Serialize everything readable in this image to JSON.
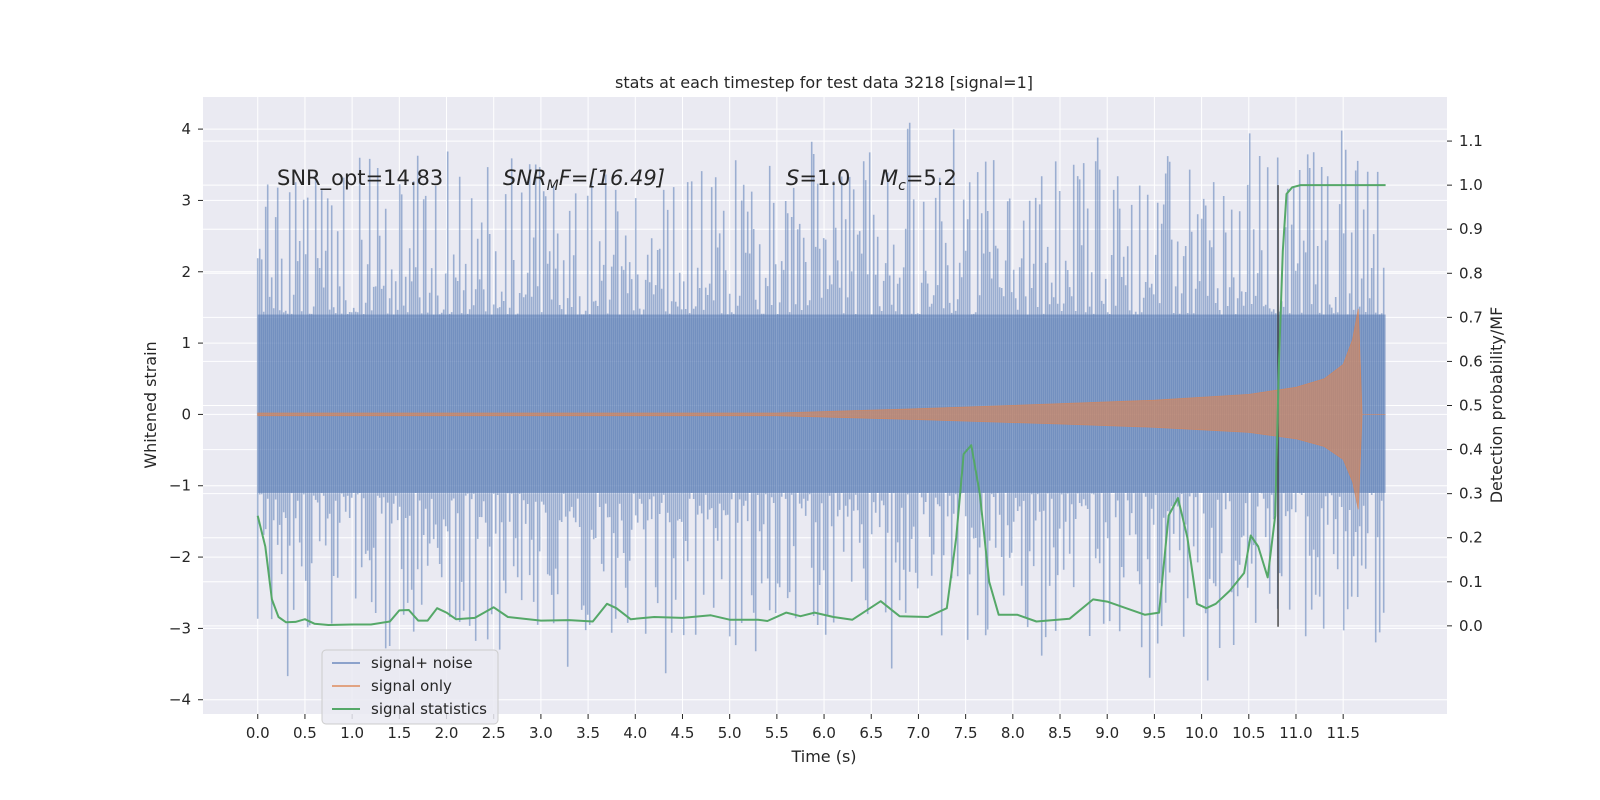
{
  "chart_data": {
    "type": "line",
    "title": "stats at each timestep for test data 3218 [signal=1]",
    "xlabel": "Time (s)",
    "ylabel": "Whitened strain",
    "ylabel_right": "Detection probability/MF",
    "xlim": [
      -0.58,
      12.6
    ],
    "ylim": [
      -4.2,
      4.45
    ],
    "ylim_right": [
      -0.2,
      1.2
    ],
    "x_ticks": [
      0.0,
      0.5,
      1.0,
      1.5,
      2.0,
      2.5,
      3.0,
      3.5,
      4.0,
      4.5,
      5.0,
      5.5,
      6.0,
      6.5,
      7.0,
      7.5,
      8.0,
      8.5,
      9.0,
      9.5,
      10.0,
      10.5,
      11.0,
      11.5
    ],
    "x_tick_labels": [
      "0.0",
      "0.5",
      "1.0",
      "1.5",
      "2.0",
      "2.5",
      "3.0",
      "3.5",
      "4.0",
      "4.5",
      "5.0",
      "5.5",
      "6.0",
      "6.5",
      "7.0",
      "7.5",
      "8.0",
      "8.5",
      "9.0",
      "9.5",
      "10.0",
      "10.5",
      "11.0",
      "11.5"
    ],
    "y_ticks": [
      -4,
      -3,
      -2,
      -1,
      0,
      1,
      2,
      3,
      4
    ],
    "y_tick_labels": [
      "−4",
      "−3",
      "−2",
      "−1",
      "0",
      "1",
      "2",
      "3",
      "4"
    ],
    "y_ticks_right": [
      0.0,
      0.1,
      0.2,
      0.3,
      0.4,
      0.5,
      0.6,
      0.7,
      0.8,
      0.9,
      1.0,
      1.1
    ],
    "y_tick_labels_right": [
      "0.0",
      "0.1",
      "0.2",
      "0.3",
      "0.4",
      "0.5",
      "0.6",
      "0.7",
      "0.8",
      "0.9",
      "1.0",
      "1.1"
    ],
    "grid": true,
    "legend_placement": "lower-left",
    "annotations": {
      "snr_opt": "SNR_opt=14.83",
      "snr_mf_base": "SNR",
      "snr_mf_sub": "M",
      "snr_mf_tail": "F=[16.49]",
      "s_label": "S",
      "s_value": "=1.0",
      "mc_label": "M",
      "mc_sub": "c",
      "mc_value": "=5.2"
    },
    "marker_line_x": 10.81,
    "series": [
      {
        "name": "signal+ noise",
        "kind": "noise_band",
        "color": "#4c72b0",
        "x_range": [
          0.0,
          11.95
        ],
        "core_band": [
          -1.1,
          1.4
        ],
        "envelope_min": -3.85,
        "envelope_max": 4.1
      },
      {
        "name": "signal only",
        "kind": "chirp_envelope",
        "color": "#dd8452",
        "x_range": [
          0.0,
          11.95
        ],
        "points": [
          {
            "x": 0.0,
            "y": 0.02
          },
          {
            "x": 5.5,
            "y": 0.02
          },
          {
            "x": 7.0,
            "y": 0.08
          },
          {
            "x": 8.5,
            "y": 0.15
          },
          {
            "x": 9.5,
            "y": 0.2
          },
          {
            "x": 10.5,
            "y": 0.28
          },
          {
            "x": 11.0,
            "y": 0.38
          },
          {
            "x": 11.3,
            "y": 0.5
          },
          {
            "x": 11.5,
            "y": 0.7
          },
          {
            "x": 11.6,
            "y": 1.05
          },
          {
            "x": 11.66,
            "y": 1.48
          },
          {
            "x": 11.7,
            "y": 0.0
          },
          {
            "x": 11.95,
            "y": 0.0
          }
        ]
      },
      {
        "name": "signal statistics",
        "kind": "line",
        "color": "#55a868",
        "axis": "right",
        "points": [
          {
            "x": 0.0,
            "y": 0.25
          },
          {
            "x": 0.08,
            "y": 0.18
          },
          {
            "x": 0.15,
            "y": 0.06
          },
          {
            "x": 0.22,
            "y": 0.02
          },
          {
            "x": 0.3,
            "y": 0.008
          },
          {
            "x": 0.4,
            "y": 0.009
          },
          {
            "x": 0.5,
            "y": 0.015
          },
          {
            "x": 0.6,
            "y": 0.005
          },
          {
            "x": 0.75,
            "y": 0.002
          },
          {
            "x": 1.0,
            "y": 0.003
          },
          {
            "x": 1.2,
            "y": 0.003
          },
          {
            "x": 1.4,
            "y": 0.01
          },
          {
            "x": 1.5,
            "y": 0.035
          },
          {
            "x": 1.6,
            "y": 0.036
          },
          {
            "x": 1.7,
            "y": 0.012
          },
          {
            "x": 1.8,
            "y": 0.012
          },
          {
            "x": 1.9,
            "y": 0.04
          },
          {
            "x": 2.0,
            "y": 0.03
          },
          {
            "x": 2.1,
            "y": 0.015
          },
          {
            "x": 2.3,
            "y": 0.018
          },
          {
            "x": 2.5,
            "y": 0.042
          },
          {
            "x": 2.65,
            "y": 0.02
          },
          {
            "x": 3.0,
            "y": 0.012
          },
          {
            "x": 3.3,
            "y": 0.013
          },
          {
            "x": 3.55,
            "y": 0.01
          },
          {
            "x": 3.7,
            "y": 0.05
          },
          {
            "x": 3.8,
            "y": 0.04
          },
          {
            "x": 3.95,
            "y": 0.015
          },
          {
            "x": 4.2,
            "y": 0.02
          },
          {
            "x": 4.5,
            "y": 0.018
          },
          {
            "x": 4.8,
            "y": 0.024
          },
          {
            "x": 5.0,
            "y": 0.014
          },
          {
            "x": 5.3,
            "y": 0.014
          },
          {
            "x": 5.4,
            "y": 0.011
          },
          {
            "x": 5.6,
            "y": 0.03
          },
          {
            "x": 5.75,
            "y": 0.022
          },
          {
            "x": 5.9,
            "y": 0.03
          },
          {
            "x": 6.1,
            "y": 0.02
          },
          {
            "x": 6.3,
            "y": 0.014
          },
          {
            "x": 6.6,
            "y": 0.056
          },
          {
            "x": 6.8,
            "y": 0.022
          },
          {
            "x": 7.1,
            "y": 0.02
          },
          {
            "x": 7.3,
            "y": 0.04
          },
          {
            "x": 7.4,
            "y": 0.2
          },
          {
            "x": 7.48,
            "y": 0.39
          },
          {
            "x": 7.56,
            "y": 0.41
          },
          {
            "x": 7.65,
            "y": 0.3
          },
          {
            "x": 7.75,
            "y": 0.1
          },
          {
            "x": 7.85,
            "y": 0.025
          },
          {
            "x": 8.05,
            "y": 0.025
          },
          {
            "x": 8.25,
            "y": 0.01
          },
          {
            "x": 8.6,
            "y": 0.016
          },
          {
            "x": 8.85,
            "y": 0.06
          },
          {
            "x": 9.0,
            "y": 0.055
          },
          {
            "x": 9.2,
            "y": 0.04
          },
          {
            "x": 9.4,
            "y": 0.025
          },
          {
            "x": 9.55,
            "y": 0.03
          },
          {
            "x": 9.65,
            "y": 0.25
          },
          {
            "x": 9.75,
            "y": 0.29
          },
          {
            "x": 9.85,
            "y": 0.2
          },
          {
            "x": 9.95,
            "y": 0.05
          },
          {
            "x": 10.05,
            "y": 0.04
          },
          {
            "x": 10.15,
            "y": 0.05
          },
          {
            "x": 10.3,
            "y": 0.08
          },
          {
            "x": 10.45,
            "y": 0.12
          },
          {
            "x": 10.52,
            "y": 0.205
          },
          {
            "x": 10.6,
            "y": 0.18
          },
          {
            "x": 10.7,
            "y": 0.11
          },
          {
            "x": 10.78,
            "y": 0.25
          },
          {
            "x": 10.82,
            "y": 0.6
          },
          {
            "x": 10.86,
            "y": 0.85
          },
          {
            "x": 10.9,
            "y": 0.98
          },
          {
            "x": 10.96,
            "y": 0.995
          },
          {
            "x": 11.05,
            "y": 1.0
          },
          {
            "x": 11.95,
            "y": 1.0
          }
        ]
      }
    ]
  }
}
